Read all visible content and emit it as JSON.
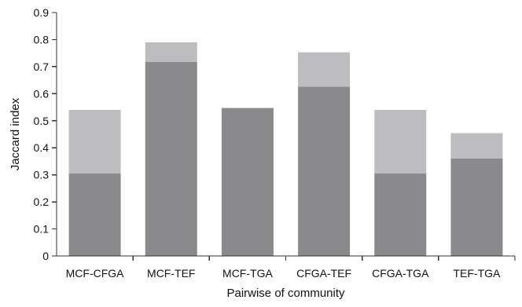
{
  "chart_data": {
    "type": "bar",
    "stacked": true,
    "categories": [
      "MCF-CFGA",
      "MCF-TEF",
      "MCF-TGA",
      "CFGA-TEF",
      "CFGA-TGA",
      "TEF-TGA"
    ],
    "series": [
      {
        "values": [
          0.305,
          0.718,
          0.547,
          0.626,
          0.305,
          0.36
        ]
      },
      {
        "values": [
          0.235,
          0.072,
          0.0,
          0.127,
          0.235,
          0.094
        ]
      }
    ],
    "totals": [
      0.54,
      0.79,
      0.547,
      0.753,
      0.54,
      0.454
    ],
    "colors": [
      "#8a8a8c",
      "#bdbdbf"
    ],
    "xlabel": "Pairwise of community",
    "ylabel": "Jaccard index",
    "ylim": [
      0,
      0.9
    ],
    "yticks": [
      "0",
      "0.1",
      "0.2",
      "0.3",
      "0.4",
      "0.5",
      "0.6",
      "0.7",
      "0.8",
      "0.9"
    ],
    "grid": false
  }
}
